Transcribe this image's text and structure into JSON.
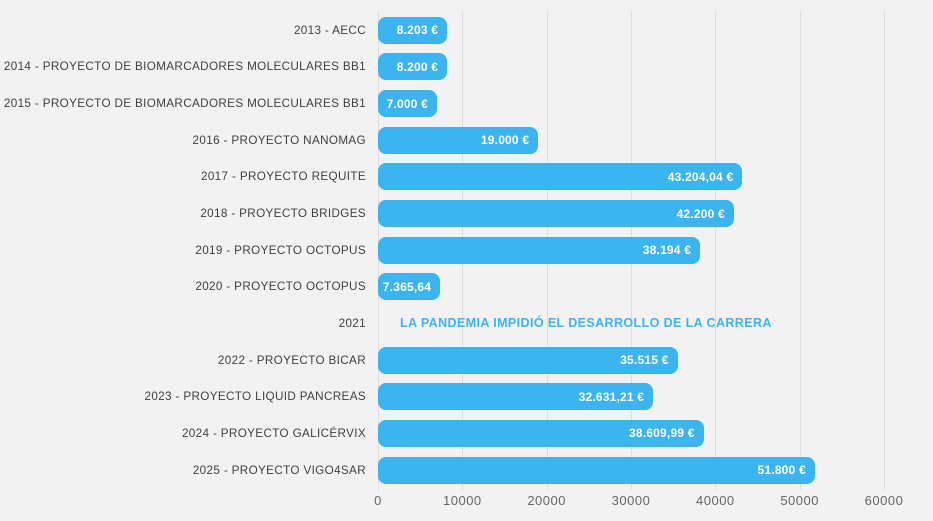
{
  "accent_color": "#3cb4f0",
  "background_color": "#f2f2f2",
  "chart_data": {
    "type": "bar",
    "orientation": "horizontal",
    "title": "",
    "xlabel": "",
    "ylabel": "",
    "xlim": [
      0,
      60000
    ],
    "grid": true,
    "legend": false,
    "bar_color": "#3cb4f0",
    "gridline_color": "#dcdcdc",
    "x_ticks": [
      {
        "label": "0",
        "value": 0
      },
      {
        "label": "10000",
        "value": 10000
      },
      {
        "label": "20000",
        "value": 20000
      },
      {
        "label": "30000",
        "value": 30000
      },
      {
        "label": "40000",
        "value": 40000
      },
      {
        "label": "50000",
        "value": 50000
      },
      {
        "label": "60000",
        "value": 60000
      }
    ],
    "rows": [
      {
        "category": "2013 - AECC",
        "value": 8203,
        "value_label": "8.203 €"
      },
      {
        "category": "2014 - PROYECTO DE BIOMARCADORES MOLECULARES BB1",
        "value": 8200,
        "value_label": "8.200 €"
      },
      {
        "category": "2015 - PROYECTO DE BIOMARCADORES MOLECULARES BB1",
        "value": 7000,
        "value_label": "7.000 €"
      },
      {
        "category": "2016 - PROYECTO NANOMAG",
        "value": 19000,
        "value_label": "19.000 €"
      },
      {
        "category": "2017 - PROYECTO REQUITE",
        "value": 43204.04,
        "value_label": "43.204,04 €"
      },
      {
        "category": "2018 - PROYECTO BRIDGES",
        "value": 42200,
        "value_label": "42.200 €"
      },
      {
        "category": "2019 - PROYECTO OCTOPUS",
        "value": 38194,
        "value_label": "38.194 €"
      },
      {
        "category": "2020 - PROYECTO OCTOPUS",
        "value": 7365.64,
        "value_label": "7.365,64"
      },
      {
        "category": "2021",
        "value": null,
        "value_label": "",
        "annotation": "LA PANDEMIA IMPIDIÓ EL DESARROLLO DE LA CARRERA"
      },
      {
        "category": "2022 - PROYECTO BICAR",
        "value": 35515,
        "value_label": "35.515 €"
      },
      {
        "category": "2023 - PROYECTO LIQUID PANCREAS",
        "value": 32631.21,
        "value_label": "32.631,21 €"
      },
      {
        "category": "2024 - PROYECTO GALICÉRVIX",
        "value": 38609.99,
        "value_label": "38.609,99 €"
      },
      {
        "category": "2025 - PROYECTO VIGO4SAR",
        "value": 51800,
        "value_label": "51.800 €"
      }
    ]
  }
}
